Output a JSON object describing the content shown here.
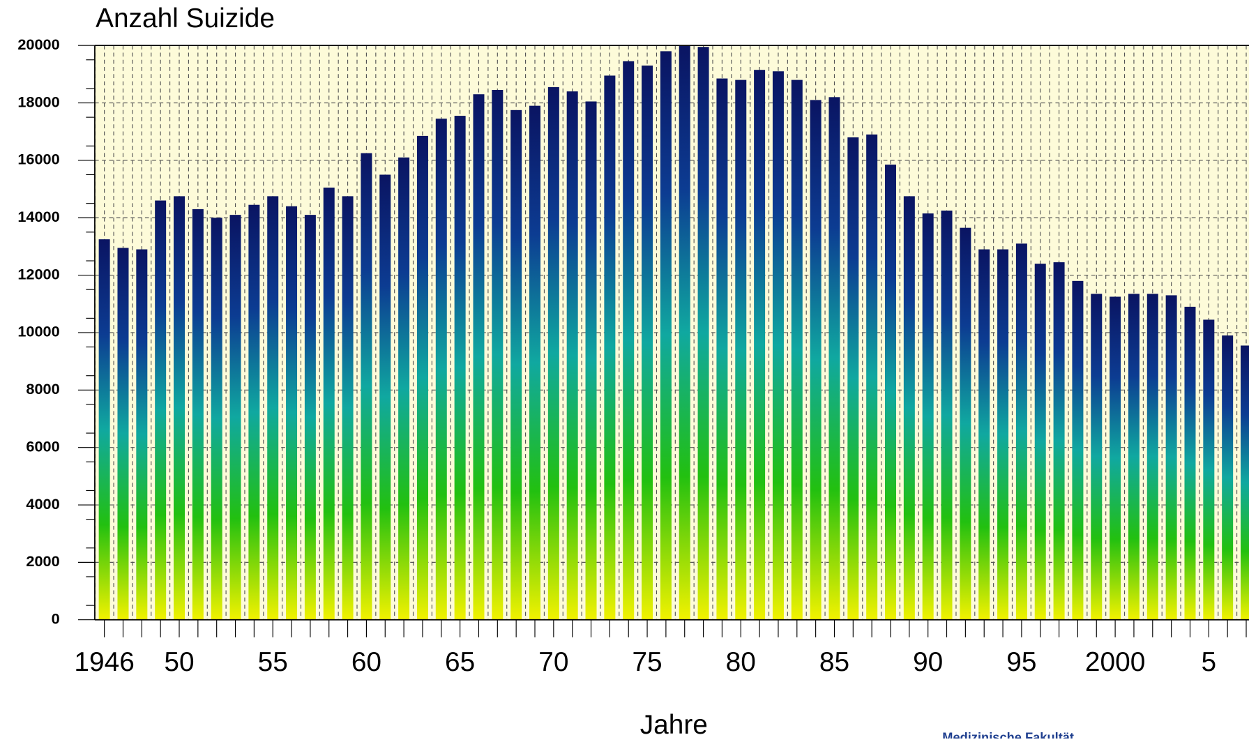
{
  "chart_data": {
    "type": "bar",
    "title": "Anzahl Suizide",
    "x_label": "Jahre",
    "footer": "Medizinische Fakultät",
    "categories": [
      "1946",
      null,
      null,
      null,
      "50",
      null,
      null,
      null,
      null,
      "55",
      null,
      null,
      null,
      null,
      "60",
      null,
      null,
      null,
      null,
      "65",
      null,
      null,
      null,
      null,
      "70",
      null,
      null,
      null,
      null,
      "75",
      null,
      null,
      null,
      null,
      "80",
      null,
      null,
      null,
      null,
      "85",
      null,
      null,
      null,
      null,
      "90",
      null,
      null,
      null,
      null,
      "95",
      null,
      null,
      null,
      null,
      "2000",
      null,
      null,
      null,
      null,
      "5",
      null,
      null
    ],
    "values": [
      13250,
      12950,
      12900,
      14600,
      14750,
      14300,
      14000,
      14100,
      14450,
      14750,
      14400,
      14100,
      15050,
      14750,
      16250,
      15500,
      16100,
      16850,
      17450,
      17550,
      18300,
      18450,
      17750,
      17900,
      18550,
      18400,
      18050,
      18950,
      19450,
      19300,
      19800,
      20000,
      19950,
      18850,
      18800,
      19150,
      19100,
      18800,
      18100,
      18200,
      16800,
      16900,
      15850,
      14750,
      14150,
      14250,
      13650,
      12900,
      12900,
      13100,
      12400,
      12450,
      11800,
      11350,
      11250,
      11350,
      11350,
      11300,
      10900,
      10450,
      9900,
      9550
    ],
    "colors": [
      "#f2f200",
      "#22c010",
      "#10a8a0",
      "#0c3c92",
      "#0a1462"
    ],
    "ylim": [
      0,
      20000
    ],
    "yticks": [
      0,
      2000,
      4000,
      6000,
      8000,
      10000,
      12000,
      14000,
      16000,
      18000,
      20000
    ],
    "grid": true
  }
}
